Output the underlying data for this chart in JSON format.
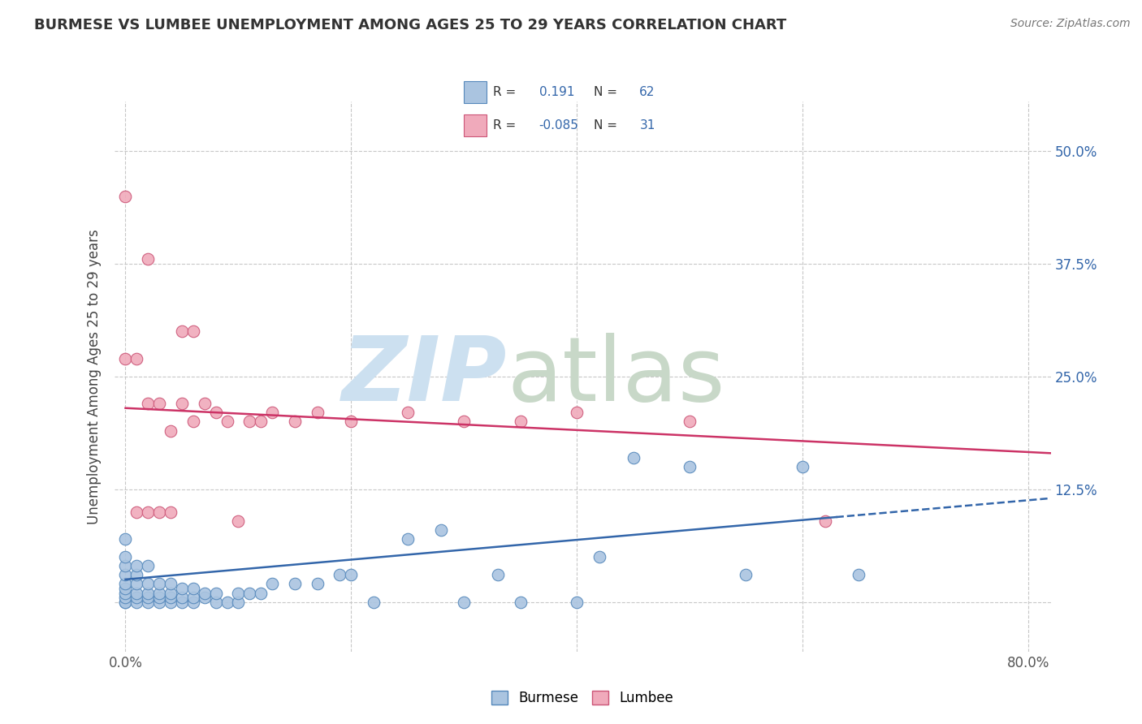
{
  "title": "BURMESE VS LUMBEE UNEMPLOYMENT AMONG AGES 25 TO 29 YEARS CORRELATION CHART",
  "source": "Source: ZipAtlas.com",
  "ylabel": "Unemployment Among Ages 25 to 29 years",
  "xlim": [
    -0.01,
    0.82
  ],
  "ylim": [
    -0.055,
    0.555
  ],
  "xticks": [
    0.0,
    0.2,
    0.4,
    0.6,
    0.8
  ],
  "xticklabels": [
    "0.0%",
    "",
    "",
    "",
    "80.0%"
  ],
  "yticks": [
    0.0,
    0.125,
    0.25,
    0.375,
    0.5
  ],
  "yright_labels": [
    "",
    "12.5%",
    "25.0%",
    "37.5%",
    "50.0%"
  ],
  "grid_color": "#c8c8c8",
  "background_color": "#ffffff",
  "burmese_color": "#aac4e0",
  "burmese_edge": "#5588bb",
  "lumbee_color": "#f0aabb",
  "lumbee_edge": "#cc5577",
  "trend_burmese_color": "#3366aa",
  "trend_lumbee_color": "#cc3366",
  "legend_R_burmese": "0.191",
  "legend_N_burmese": "62",
  "legend_R_lumbee": "-0.085",
  "legend_N_lumbee": "31",
  "burmese_x": [
    0.0,
    0.0,
    0.0,
    0.0,
    0.0,
    0.0,
    0.0,
    0.0,
    0.0,
    0.0,
    0.01,
    0.01,
    0.01,
    0.01,
    0.01,
    0.01,
    0.02,
    0.02,
    0.02,
    0.02,
    0.02,
    0.03,
    0.03,
    0.03,
    0.03,
    0.04,
    0.04,
    0.04,
    0.04,
    0.05,
    0.05,
    0.05,
    0.06,
    0.06,
    0.06,
    0.07,
    0.07,
    0.08,
    0.08,
    0.09,
    0.1,
    0.1,
    0.11,
    0.12,
    0.13,
    0.15,
    0.17,
    0.19,
    0.2,
    0.22,
    0.25,
    0.28,
    0.3,
    0.33,
    0.35,
    0.4,
    0.42,
    0.45,
    0.5,
    0.55,
    0.6,
    0.65
  ],
  "burmese_y": [
    0.0,
    0.0,
    0.005,
    0.01,
    0.015,
    0.02,
    0.03,
    0.04,
    0.05,
    0.07,
    0.0,
    0.005,
    0.01,
    0.02,
    0.03,
    0.04,
    0.0,
    0.005,
    0.01,
    0.02,
    0.04,
    0.0,
    0.005,
    0.01,
    0.02,
    0.0,
    0.005,
    0.01,
    0.02,
    0.0,
    0.005,
    0.015,
    0.0,
    0.005,
    0.015,
    0.005,
    0.01,
    0.0,
    0.01,
    0.0,
    0.0,
    0.01,
    0.01,
    0.01,
    0.02,
    0.02,
    0.02,
    0.03,
    0.03,
    0.0,
    0.07,
    0.08,
    0.0,
    0.03,
    0.0,
    0.0,
    0.05,
    0.16,
    0.15,
    0.03,
    0.15,
    0.03
  ],
  "lumbee_x": [
    0.0,
    0.0,
    0.01,
    0.01,
    0.02,
    0.02,
    0.02,
    0.03,
    0.03,
    0.04,
    0.04,
    0.05,
    0.05,
    0.06,
    0.06,
    0.07,
    0.08,
    0.09,
    0.1,
    0.11,
    0.12,
    0.13,
    0.15,
    0.17,
    0.2,
    0.25,
    0.3,
    0.35,
    0.4,
    0.5,
    0.62
  ],
  "lumbee_y": [
    0.45,
    0.27,
    0.1,
    0.27,
    0.38,
    0.22,
    0.1,
    0.22,
    0.1,
    0.19,
    0.1,
    0.3,
    0.22,
    0.3,
    0.2,
    0.22,
    0.21,
    0.2,
    0.09,
    0.2,
    0.2,
    0.21,
    0.2,
    0.21,
    0.2,
    0.21,
    0.2,
    0.2,
    0.21,
    0.2,
    0.09
  ],
  "burmese_trend_start_x": 0.0,
  "burmese_trend_start_y": 0.025,
  "burmese_trend_end_solid_x": 0.63,
  "burmese_trend_end_x": 0.82,
  "burmese_trend_end_y": 0.115,
  "lumbee_trend_start_x": 0.0,
  "lumbee_trend_start_y": 0.215,
  "lumbee_trend_end_x": 0.82,
  "lumbee_trend_end_y": 0.165,
  "watermark_zip_color": "#cce0f0",
  "watermark_atlas_color": "#c8d8c8"
}
